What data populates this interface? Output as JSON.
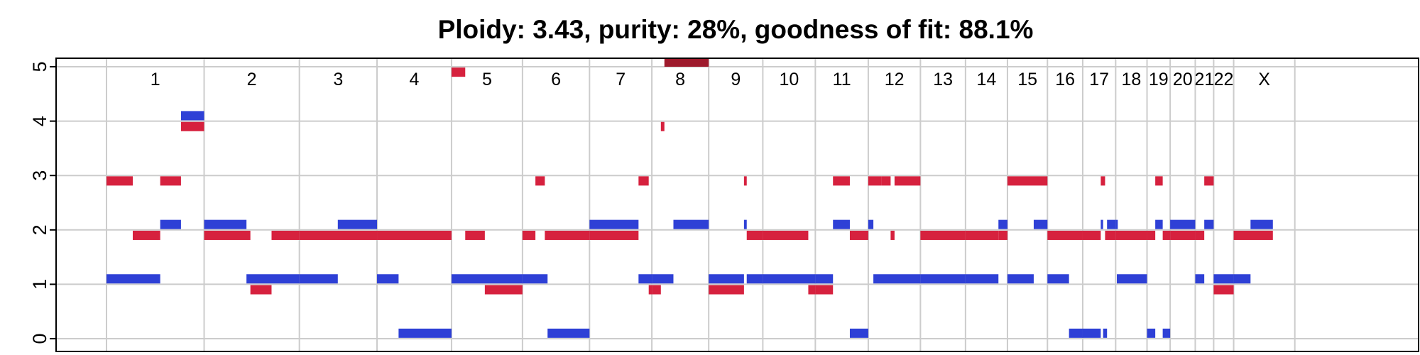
{
  "chart_data": {
    "type": "segment",
    "title": "Ploidy: 3.43, purity: 28%, goodness of fit: 88.1%",
    "ylim": [
      0,
      5
    ],
    "y_ticks": [
      "0",
      "1",
      "2",
      "3",
      "4",
      "5"
    ],
    "grid": true,
    "xlim": [
      0,
      3209
    ],
    "chromosomes": [
      {
        "label": "1",
        "start": 0,
        "end": 249
      },
      {
        "label": "2",
        "start": 249,
        "end": 492
      },
      {
        "label": "3",
        "start": 492,
        "end": 690
      },
      {
        "label": "4",
        "start": 690,
        "end": 880
      },
      {
        "label": "5",
        "start": 880,
        "end": 1061
      },
      {
        "label": "6",
        "start": 1061,
        "end": 1232
      },
      {
        "label": "7",
        "start": 1232,
        "end": 1391
      },
      {
        "label": "8",
        "start": 1391,
        "end": 1536
      },
      {
        "label": "9",
        "start": 1536,
        "end": 1674
      },
      {
        "label": "10",
        "start": 1674,
        "end": 1808
      },
      {
        "label": "11",
        "start": 1808,
        "end": 1943
      },
      {
        "label": "12",
        "start": 1943,
        "end": 2076
      },
      {
        "label": "13",
        "start": 2076,
        "end": 2191
      },
      {
        "label": "14",
        "start": 2191,
        "end": 2298
      },
      {
        "label": "15",
        "start": 2298,
        "end": 2400
      },
      {
        "label": "16",
        "start": 2400,
        "end": 2490
      },
      {
        "label": "17",
        "start": 2490,
        "end": 2574
      },
      {
        "label": "18",
        "start": 2574,
        "end": 2654
      },
      {
        "label": "19",
        "start": 2654,
        "end": 2713
      },
      {
        "label": "20",
        "start": 2713,
        "end": 2777
      },
      {
        "label": "21",
        "start": 2777,
        "end": 2824
      },
      {
        "label": "22",
        "start": 2824,
        "end": 2875
      },
      {
        "label": "X",
        "start": 2875,
        "end": 3031
      }
    ],
    "colors": {
      "major": "#2e40d6",
      "minor": "#d6213e",
      "clipped": "#9e1a2c",
      "grid": "#cccccc"
    },
    "series": [
      {
        "name": "",
        "color": "#2e40d6",
        "segments": [
          {
            "x0": 0,
            "x1": 137,
            "y": 1.1
          },
          {
            "x0": 137,
            "x1": 190,
            "y": 2.1
          },
          {
            "x0": 190,
            "x1": 249,
            "y": 4.1
          },
          {
            "x0": 249,
            "x1": 357,
            "y": 2.1
          },
          {
            "x0": 357,
            "x1": 492,
            "y": 1.1
          },
          {
            "x0": 492,
            "x1": 590,
            "y": 1.1
          },
          {
            "x0": 590,
            "x1": 690,
            "y": 2.1
          },
          {
            "x0": 690,
            "x1": 745,
            "y": 1.1
          },
          {
            "x0": 745,
            "x1": 880,
            "y": 0.1
          },
          {
            "x0": 880,
            "x1": 1061,
            "y": 1.1
          },
          {
            "x0": 1061,
            "x1": 1125,
            "y": 1.1
          },
          {
            "x0": 1125,
            "x1": 1232,
            "y": 0.1
          },
          {
            "x0": 1232,
            "x1": 1357,
            "y": 2.1
          },
          {
            "x0": 1357,
            "x1": 1391,
            "y": 1.1
          },
          {
            "x0": 1391,
            "x1": 1446,
            "y": 1.1
          },
          {
            "x0": 1446,
            "x1": 1536,
            "y": 2.1
          },
          {
            "x0": 1536,
            "x1": 1626,
            "y": 1.1
          },
          {
            "x0": 1626,
            "x1": 1633,
            "y": 2.1
          },
          {
            "x0": 1633,
            "x1": 1674,
            "y": 1.1
          },
          {
            "x0": 1674,
            "x1": 1808,
            "y": 1.1
          },
          {
            "x0": 1808,
            "x1": 1853,
            "y": 1.1
          },
          {
            "x0": 1853,
            "x1": 1896,
            "y": 2.1
          },
          {
            "x0": 1896,
            "x1": 1943,
            "y": 0.1
          },
          {
            "x0": 1943,
            "x1": 1956,
            "y": 2.1
          },
          {
            "x0": 1956,
            "x1": 2076,
            "y": 1.1
          },
          {
            "x0": 2076,
            "x1": 2191,
            "y": 1.1
          },
          {
            "x0": 2191,
            "x1": 2275,
            "y": 1.1
          },
          {
            "x0": 2275,
            "x1": 2298,
            "y": 2.1
          },
          {
            "x0": 2298,
            "x1": 2365,
            "y": 1.1
          },
          {
            "x0": 2365,
            "x1": 2400,
            "y": 2.1
          },
          {
            "x0": 2400,
            "x1": 2455,
            "y": 1.1
          },
          {
            "x0": 2455,
            "x1": 2490,
            "y": 0.1
          },
          {
            "x0": 2490,
            "x1": 2536,
            "y": 0.1
          },
          {
            "x0": 2536,
            "x1": 2542,
            "y": 2.1
          },
          {
            "x0": 2542,
            "x1": 2552,
            "y": 0.1
          },
          {
            "x0": 2552,
            "x1": 2574,
            "y": 2.1
          },
          {
            "x0": 2574,
            "x1": 2577,
            "y": 2.1
          },
          {
            "x0": 2577,
            "x1": 2654,
            "y": 1.1
          },
          {
            "x0": 2654,
            "x1": 2675,
            "y": 0.1
          },
          {
            "x0": 2675,
            "x1": 2694,
            "y": 2.1
          },
          {
            "x0": 2694,
            "x1": 2713,
            "y": 0.1
          },
          {
            "x0": 2713,
            "x1": 2777,
            "y": 2.1
          },
          {
            "x0": 2777,
            "x1": 2800,
            "y": 1.1
          },
          {
            "x0": 2800,
            "x1": 2824,
            "y": 2.1
          },
          {
            "x0": 2824,
            "x1": 2875,
            "y": 1.1
          },
          {
            "x0": 2875,
            "x1": 2918,
            "y": 1.1
          },
          {
            "x0": 2918,
            "x1": 2975,
            "y": 2.1
          }
        ]
      },
      {
        "name": "",
        "color": "#d6213e",
        "segments": [
          {
            "x0": 0,
            "x1": 67,
            "y": 2.9
          },
          {
            "x0": 67,
            "x1": 137,
            "y": 1.9
          },
          {
            "x0": 137,
            "x1": 190,
            "y": 2.9
          },
          {
            "x0": 190,
            "x1": 249,
            "y": 3.9
          },
          {
            "x0": 249,
            "x1": 367,
            "y": 1.9
          },
          {
            "x0": 367,
            "x1": 421,
            "y": 0.9
          },
          {
            "x0": 421,
            "x1": 492,
            "y": 1.9
          },
          {
            "x0": 492,
            "x1": 690,
            "y": 1.9
          },
          {
            "x0": 690,
            "x1": 880,
            "y": 1.9
          },
          {
            "x0": 880,
            "x1": 915,
            "y": 4.9
          },
          {
            "x0": 915,
            "x1": 965,
            "y": 1.9
          },
          {
            "x0": 965,
            "x1": 1061,
            "y": 0.9
          },
          {
            "x0": 1061,
            "x1": 1094,
            "y": 1.9
          },
          {
            "x0": 1094,
            "x1": 1118,
            "y": 2.9
          },
          {
            "x0": 1118,
            "x1": 1232,
            "y": 1.9
          },
          {
            "x0": 1232,
            "x1": 1357,
            "y": 1.9
          },
          {
            "x0": 1357,
            "x1": 1383,
            "y": 2.9
          },
          {
            "x0": 1383,
            "x1": 1391,
            "y": 0.9
          },
          {
            "x0": 1391,
            "x1": 1414,
            "y": 0.9
          },
          {
            "x0": 1414,
            "x1": 1423,
            "y": 3.9
          },
          {
            "x0": 1423,
            "x1": 1536,
            "y": 5.2
          },
          {
            "x0": 1536,
            "x1": 1626,
            "y": 0.9
          },
          {
            "x0": 1626,
            "x1": 1633,
            "y": 2.9
          },
          {
            "x0": 1633,
            "x1": 1674,
            "y": 1.9
          },
          {
            "x0": 1674,
            "x1": 1790,
            "y": 1.9
          },
          {
            "x0": 1790,
            "x1": 1808,
            "y": 0.9
          },
          {
            "x0": 1808,
            "x1": 1853,
            "y": 0.9
          },
          {
            "x0": 1853,
            "x1": 1896,
            "y": 2.9
          },
          {
            "x0": 1896,
            "x1": 1943,
            "y": 1.9
          },
          {
            "x0": 1943,
            "x1": 1976,
            "y": 2.9
          },
          {
            "x0": 1976,
            "x1": 2000,
            "y": 2.9
          },
          {
            "x0": 2000,
            "x1": 2010,
            "y": 1.9
          },
          {
            "x0": 2010,
            "x1": 2076,
            "y": 2.9
          },
          {
            "x0": 2076,
            "x1": 2191,
            "y": 1.9
          },
          {
            "x0": 2191,
            "x1": 2275,
            "y": 1.9
          },
          {
            "x0": 2275,
            "x1": 2298,
            "y": 1.9
          },
          {
            "x0": 2298,
            "x1": 2400,
            "y": 2.9
          },
          {
            "x0": 2400,
            "x1": 2490,
            "y": 1.9
          },
          {
            "x0": 2490,
            "x1": 2536,
            "y": 1.9
          },
          {
            "x0": 2536,
            "x1": 2547,
            "y": 2.9
          },
          {
            "x0": 2547,
            "x1": 2574,
            "y": 1.9
          },
          {
            "x0": 2574,
            "x1": 2654,
            "y": 1.9
          },
          {
            "x0": 2654,
            "x1": 2675,
            "y": 1.9
          },
          {
            "x0": 2675,
            "x1": 2694,
            "y": 2.9
          },
          {
            "x0": 2694,
            "x1": 2713,
            "y": 1.9
          },
          {
            "x0": 2713,
            "x1": 2777,
            "y": 1.9
          },
          {
            "x0": 2777,
            "x1": 2800,
            "y": 1.9
          },
          {
            "x0": 2800,
            "x1": 2824,
            "y": 2.9
          },
          {
            "x0": 2824,
            "x1": 2875,
            "y": 0.9
          },
          {
            "x0": 2875,
            "x1": 2975,
            "y": 1.9
          }
        ]
      }
    ]
  }
}
